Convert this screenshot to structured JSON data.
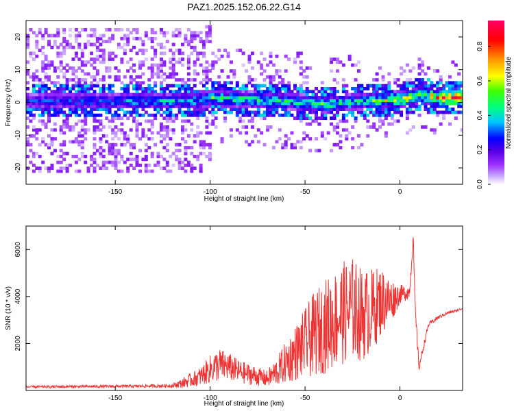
{
  "figure": {
    "title": "PAZ1.2025.152.06.22.G14"
  },
  "chart_data": [
    {
      "type": "heatmap",
      "title": "PAZ1.2025.152.06.22.G14",
      "xlabel": "Height of straight line (km)",
      "ylabel": "Frequency (Hz)",
      "xlim": [
        -197,
        33
      ],
      "ylim": [
        -25,
        25
      ],
      "x_ticks": [
        -150,
        -100,
        -50,
        0
      ],
      "y_ticks": [
        -20,
        -10,
        0,
        10,
        20
      ],
      "colorbar": {
        "label": "Normalized spectral amplitude",
        "range": [
          0,
          0.95
        ],
        "ticks": [
          0.0,
          0.2,
          0.4,
          0.6,
          0.8
        ],
        "colormap": [
          "#ffffff",
          "#9b30ff",
          "#5a00e6",
          "#0000ff",
          "#00c8ff",
          "#00ff80",
          "#40ff00",
          "#ffff00",
          "#ff8c00",
          "#ff0000",
          "#ff0066"
        ]
      },
      "ridge": {
        "description_x": [
          -197,
          -170,
          -140,
          -110,
          -100,
          -80,
          -60,
          -40,
          -20,
          0,
          10,
          20,
          33
        ],
        "center_freq": [
          0,
          0,
          0,
          0,
          1,
          0.5,
          0,
          -1,
          0,
          0.5,
          2,
          1,
          1
        ],
        "peak_amplitude": [
          0.3,
          0.35,
          0.4,
          0.45,
          0.55,
          0.5,
          0.5,
          0.55,
          0.5,
          0.75,
          0.6,
          0.9,
          0.95
        ]
      }
    },
    {
      "type": "line",
      "title": "",
      "xlabel": "Height of straight line (km)",
      "ylabel": "SNR (10 * v/v)",
      "xlim": [
        -197,
        33
      ],
      "ylim": [
        0,
        7000
      ],
      "x_ticks": [
        -150,
        -100,
        -50,
        0
      ],
      "y_ticks": [
        2000,
        4000,
        6000
      ],
      "color": "#ee3333",
      "series": [
        {
          "x": [
            -197,
            -180,
            -160,
            -140,
            -120,
            -115,
            -110,
            -105,
            -100,
            -95,
            -90,
            -85,
            -80,
            -75,
            -70,
            -65,
            -60,
            -55,
            -50,
            -45,
            -40,
            -35,
            -30,
            -25,
            -20,
            -15,
            -10,
            -5,
            0,
            5,
            7,
            8,
            10,
            15,
            20,
            25,
            30,
            33
          ],
          "y": [
            150,
            160,
            170,
            180,
            200,
            300,
            450,
            600,
            900,
            1100,
            1000,
            800,
            700,
            600,
            500,
            800,
            1200,
            1600,
            2000,
            2400,
            2700,
            3000,
            3300,
            3500,
            3200,
            3400,
            3800,
            3800,
            4100,
            4200,
            6500,
            3500,
            1000,
            2800,
            3100,
            3300,
            3400,
            3500
          ],
          "amplitude": [
            50,
            60,
            60,
            60,
            80,
            200,
            300,
            400,
            600,
            700,
            600,
            500,
            450,
            400,
            350,
            600,
            900,
            1200,
            1500,
            1800,
            2000,
            2100,
            2200,
            2200,
            2000,
            1800,
            1500,
            1000,
            400,
            300,
            300,
            300,
            200,
            100,
            80,
            60,
            50,
            50
          ]
        }
      ]
    }
  ]
}
